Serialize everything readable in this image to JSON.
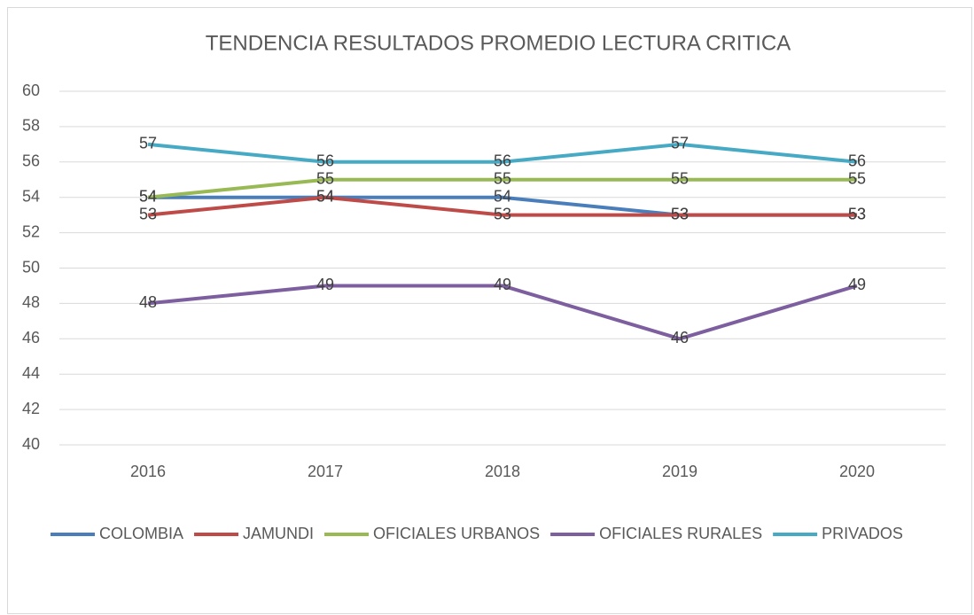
{
  "chart_data": {
    "type": "line",
    "title": "TENDENCIA RESULTADOS PROMEDIO LECTURA CRITICA",
    "categories": [
      "2016",
      "2017",
      "2018",
      "2019",
      "2020"
    ],
    "series": [
      {
        "name": "COLOMBIA",
        "color": "#4a7ebb",
        "values": [
          54,
          54,
          54,
          53,
          53
        ]
      },
      {
        "name": "JAMUNDI",
        "color": "#be4b48",
        "values": [
          53,
          54,
          53,
          53,
          53
        ]
      },
      {
        "name": "OFICIALES URBANOS",
        "color": "#98b954",
        "values": [
          54,
          55,
          55,
          55,
          55
        ]
      },
      {
        "name": "OFICIALES RURALES",
        "color": "#7d5fa0",
        "values": [
          48,
          49,
          49,
          46,
          49
        ]
      },
      {
        "name": "PRIVADOS",
        "color": "#46aac5",
        "values": [
          57,
          56,
          56,
          57,
          56
        ]
      }
    ],
    "ylim": [
      40,
      60
    ],
    "yticks": [
      40,
      42,
      44,
      46,
      48,
      50,
      52,
      54,
      56,
      58,
      60
    ],
    "grid": true,
    "legend": "bottom"
  }
}
